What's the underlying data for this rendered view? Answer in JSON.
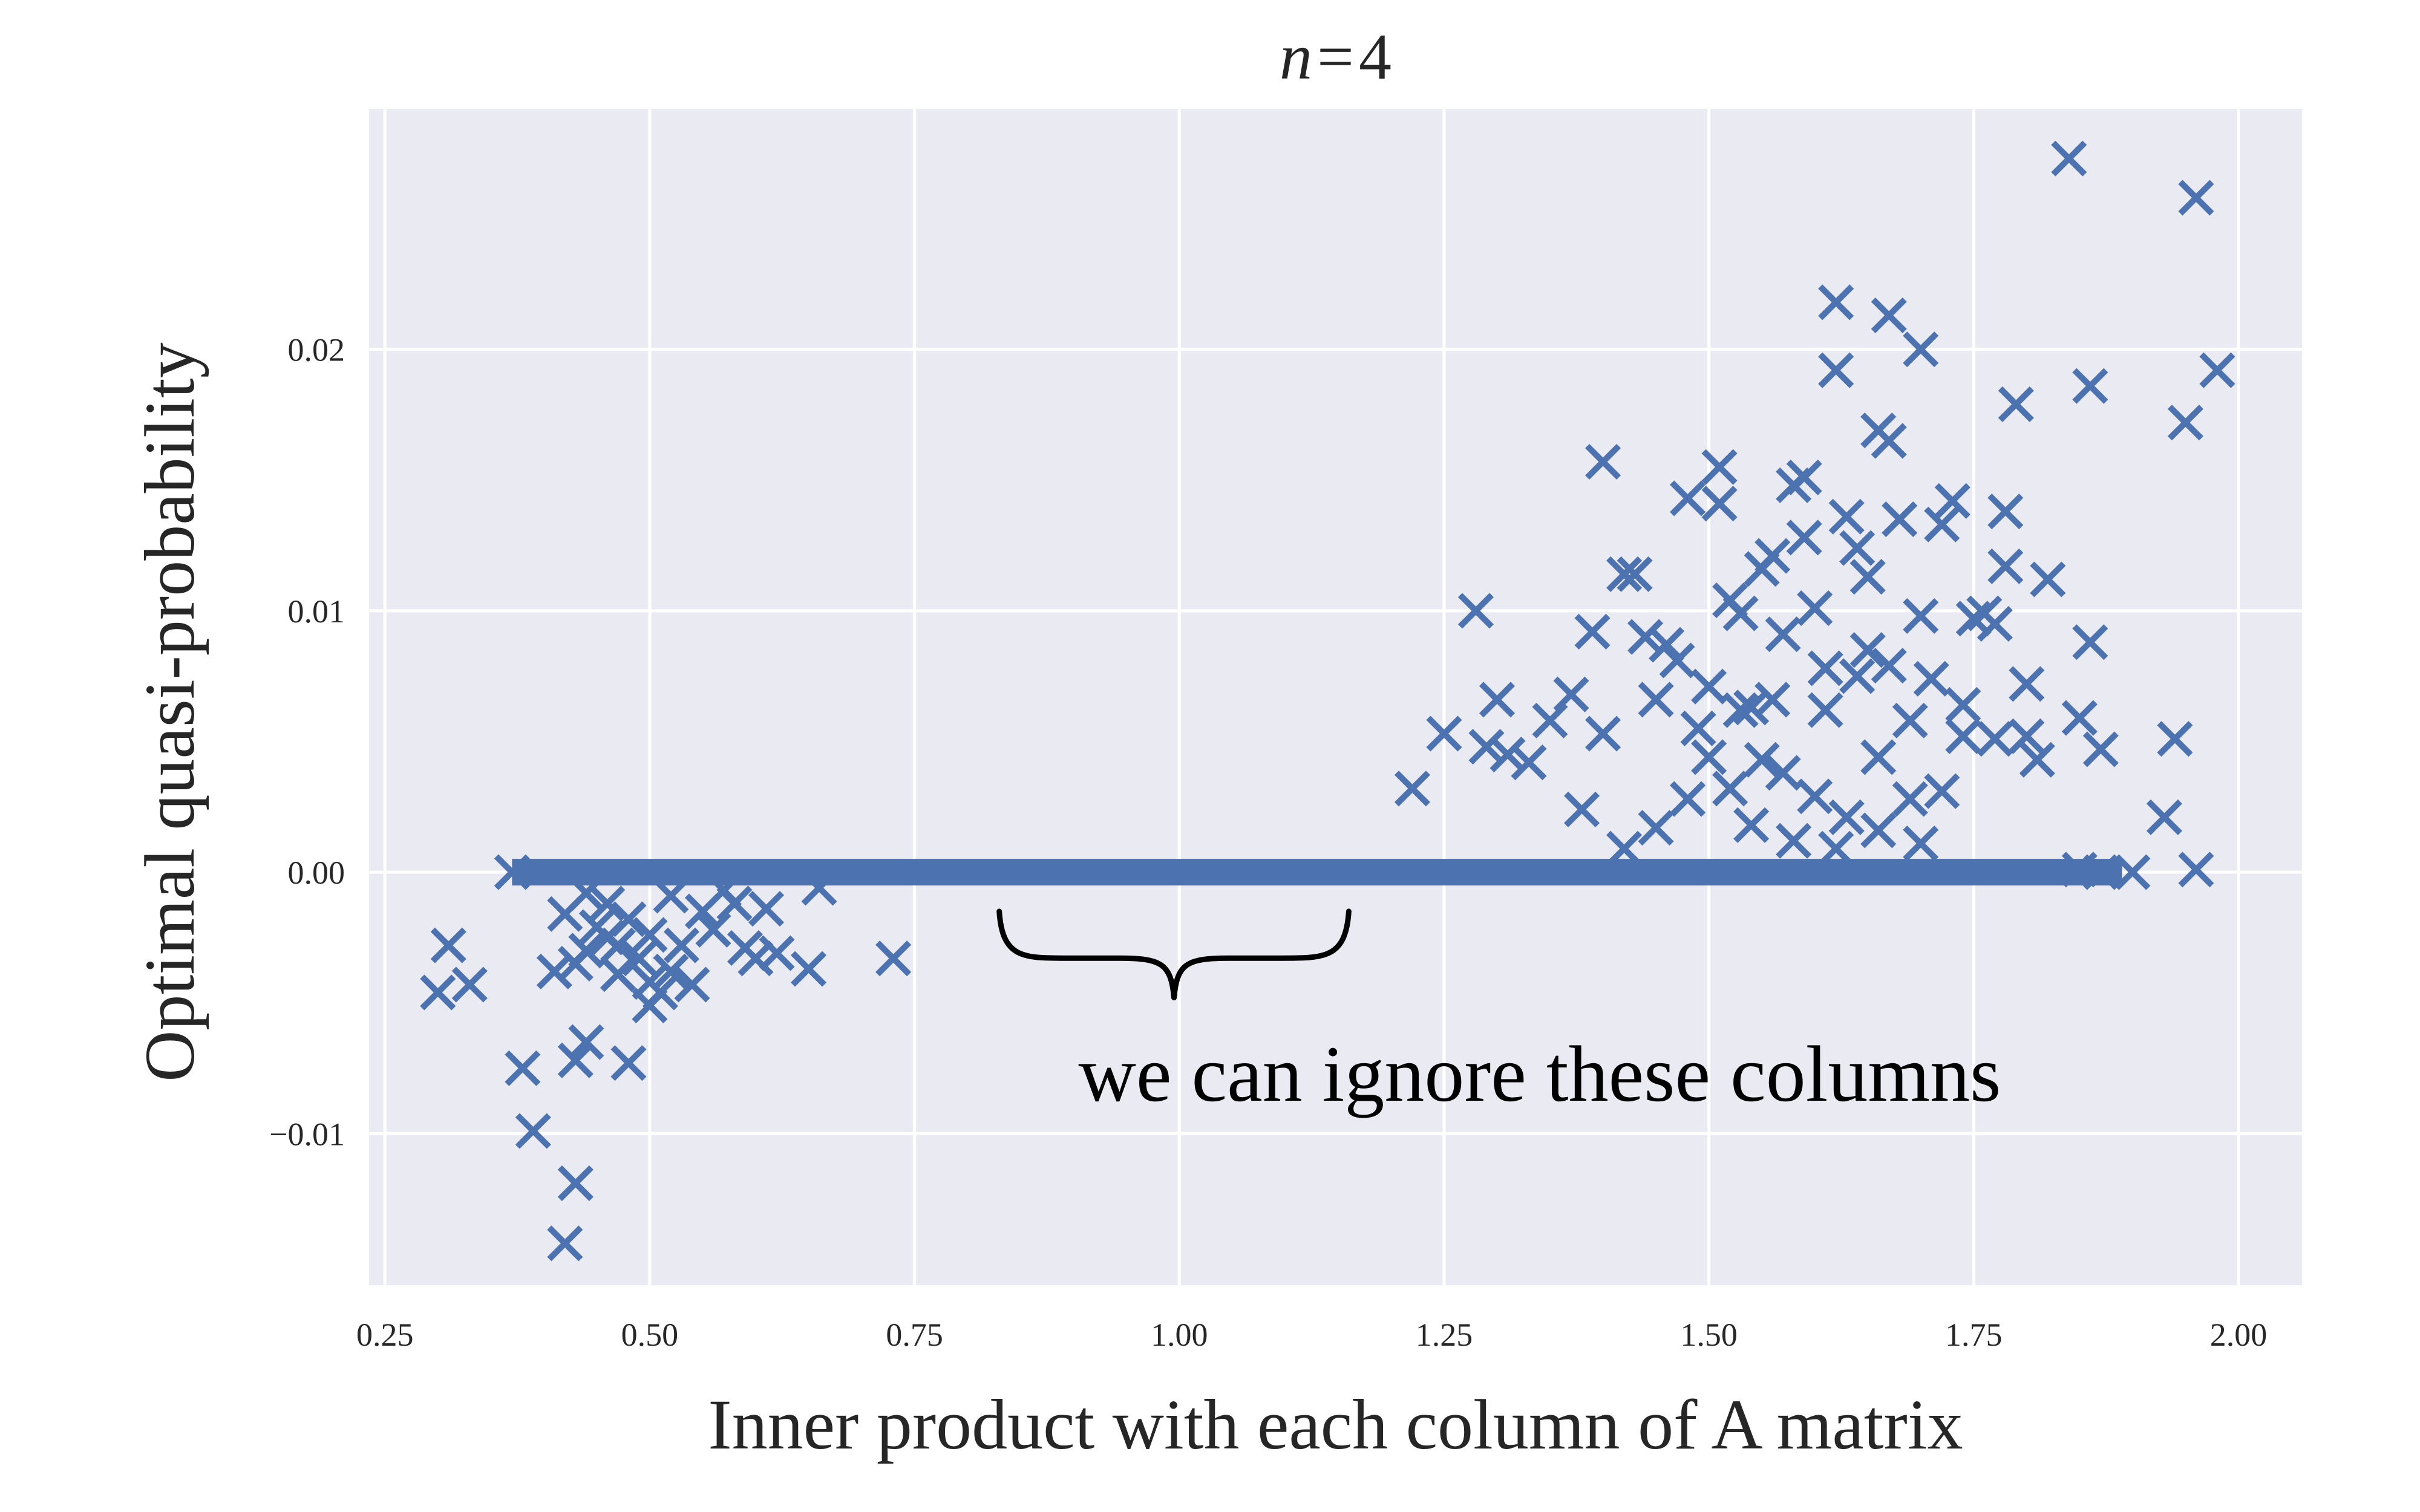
{
  "chart_data": {
    "type": "scatter",
    "title_var": "n",
    "title_op": "=",
    "title_num": "4",
    "xlabel": "Inner product with each column of A matrix",
    "ylabel": "Optimal quasi-probability",
    "xlim": [
      0.235,
      2.06
    ],
    "ylim": [
      -0.0158,
      0.0292
    ],
    "xticks": [
      0.25,
      0.5,
      0.75,
      1.0,
      1.25,
      1.5,
      1.75,
      2.0
    ],
    "xtick_labels": [
      "0.25",
      "0.50",
      "0.75",
      "1.00",
      "1.25",
      "1.50",
      "1.75",
      "2.00"
    ],
    "yticks": [
      -0.01,
      0.0,
      0.01,
      0.02
    ],
    "ytick_labels": [
      "−0.01",
      "0.00",
      "0.01",
      "0.02"
    ],
    "grid": true,
    "marker": "x",
    "colors": {
      "background": "#eaeaf2",
      "grid": "#ffffff",
      "marker": "#4c72b0",
      "brace": "#000000"
    },
    "annotation": {
      "text": "we can ignore these columns",
      "brace_x": [
        0.83,
        1.16
      ],
      "brace_y_top": -0.0015,
      "brace_y_tip": -0.0048
    },
    "series": [
      {
        "points": [
          [
            0.31,
            -0.0028
          ],
          [
            0.3,
            -0.0046
          ],
          [
            0.33,
            -0.0043
          ],
          [
            0.37,
            0.0
          ],
          [
            0.38,
            -0.0075
          ],
          [
            0.39,
            -0.0099
          ],
          [
            0.42,
            -0.0142
          ],
          [
            0.43,
            -0.0119
          ],
          [
            0.43,
            -0.0072
          ],
          [
            0.44,
            -0.0065
          ],
          [
            0.48,
            -0.0073
          ],
          [
            0.41,
            -0.0038
          ],
          [
            0.43,
            -0.0035
          ],
          [
            0.44,
            -0.003
          ],
          [
            0.45,
            -0.0021
          ],
          [
            0.46,
            -0.0025
          ],
          [
            0.47,
            -0.0039
          ],
          [
            0.48,
            -0.0018
          ],
          [
            0.49,
            -0.0033
          ],
          [
            0.5,
            -0.0042
          ],
          [
            0.5,
            -0.0051
          ],
          [
            0.51,
            -0.0046
          ],
          [
            0.52,
            -0.0038
          ],
          [
            0.53,
            -0.0028
          ],
          [
            0.54,
            -0.0043
          ],
          [
            0.55,
            -0.0015
          ],
          [
            0.56,
            -0.0022
          ],
          [
            0.58,
            -0.0012
          ],
          [
            0.59,
            -0.0029
          ],
          [
            0.6,
            -0.0033
          ],
          [
            0.62,
            -0.0031
          ],
          [
            0.65,
            -0.0037
          ],
          [
            0.66,
            -0.0006
          ],
          [
            0.73,
            -0.0033
          ],
          [
            0.46,
            -0.0012
          ],
          [
            0.44,
            -0.0008
          ],
          [
            0.52,
            -0.0009
          ],
          [
            0.57,
            -0.0007
          ],
          [
            0.61,
            -0.0014
          ],
          [
            0.42,
            -0.0016
          ],
          [
            0.47,
            -0.0028
          ],
          [
            0.5,
            -0.0024
          ],
          [
            1.22,
            0.0032
          ],
          [
            1.25,
            0.0053
          ],
          [
            1.28,
            0.01
          ],
          [
            1.29,
            0.0048
          ],
          [
            1.3,
            0.0066
          ],
          [
            1.31,
            0.0045
          ],
          [
            1.33,
            0.0042
          ],
          [
            1.35,
            0.0058
          ],
          [
            1.37,
            0.0068
          ],
          [
            1.38,
            0.0024
          ],
          [
            1.39,
            0.0092
          ],
          [
            1.4,
            0.0157
          ],
          [
            1.4,
            0.0053
          ],
          [
            1.42,
            0.0114
          ],
          [
            1.43,
            0.0114
          ],
          [
            1.44,
            0.009
          ],
          [
            1.45,
            0.0066
          ],
          [
            1.46,
            0.0087
          ],
          [
            1.47,
            0.0081
          ],
          [
            1.48,
            0.0143
          ],
          [
            1.49,
            0.0055
          ],
          [
            1.5,
            0.0071
          ],
          [
            1.51,
            0.0155
          ],
          [
            1.51,
            0.0141
          ],
          [
            1.52,
            0.0104
          ],
          [
            1.53,
            0.0099
          ],
          [
            1.54,
            0.0063
          ],
          [
            1.55,
            0.0116
          ],
          [
            1.56,
            0.0121
          ],
          [
            1.57,
            0.0091
          ],
          [
            1.58,
            0.0148
          ],
          [
            1.59,
            0.0151
          ],
          [
            1.59,
            0.0128
          ],
          [
            1.6,
            0.0101
          ],
          [
            1.61,
            0.0078
          ],
          [
            1.62,
            0.0218
          ],
          [
            1.62,
            0.0192
          ],
          [
            1.63,
            0.0136
          ],
          [
            1.64,
            0.0124
          ],
          [
            1.65,
            0.0113
          ],
          [
            1.65,
            0.0085
          ],
          [
            1.66,
            0.0169
          ],
          [
            1.67,
            0.0165
          ],
          [
            1.67,
            0.0213
          ],
          [
            1.68,
            0.0135
          ],
          [
            1.69,
            0.0058
          ],
          [
            1.7,
            0.02
          ],
          [
            1.7,
            0.0098
          ],
          [
            1.71,
            0.0074
          ],
          [
            1.72,
            0.0133
          ],
          [
            1.73,
            0.0142
          ],
          [
            1.74,
            0.0052
          ],
          [
            1.75,
            0.0097
          ],
          [
            1.76,
            0.0099
          ],
          [
            1.77,
            0.0095
          ],
          [
            1.78,
            0.0138
          ],
          [
            1.78,
            0.0117
          ],
          [
            1.79,
            0.0179
          ],
          [
            1.8,
            0.0052
          ],
          [
            1.81,
            0.0043
          ],
          [
            1.82,
            0.0112
          ],
          [
            1.84,
            0.0273
          ],
          [
            1.85,
            0.0059
          ],
          [
            1.86,
            0.0186
          ],
          [
            1.86,
            0.0088
          ],
          [
            1.87,
            0.0047
          ],
          [
            1.93,
            0.0021
          ],
          [
            1.94,
            0.0051
          ],
          [
            1.95,
            0.0172
          ],
          [
            1.96,
            0.0258
          ],
          [
            1.98,
            0.0192
          ],
          [
            1.96,
            0.0001
          ],
          [
            1.9,
            0.0
          ],
          [
            1.87,
            0.0
          ],
          [
            1.85,
            0.0001
          ],
          [
            1.52,
            0.0032
          ],
          [
            1.55,
            0.0043
          ],
          [
            1.57,
            0.0038
          ],
          [
            1.6,
            0.0029
          ],
          [
            1.63,
            0.0021
          ],
          [
            1.66,
            0.0044
          ],
          [
            1.69,
            0.0028
          ],
          [
            1.72,
            0.0031
          ],
          [
            1.54,
            0.0018
          ],
          [
            1.58,
            0.0012
          ],
          [
            1.62,
            0.0009
          ],
          [
            1.66,
            0.0016
          ],
          [
            1.7,
            0.0011
          ],
          [
            1.48,
            0.0028
          ],
          [
            1.45,
            0.0017
          ],
          [
            1.42,
            0.0009
          ],
          [
            1.5,
            0.0044
          ],
          [
            1.53,
            0.0062
          ],
          [
            1.56,
            0.0066
          ],
          [
            1.61,
            0.0062
          ],
          [
            1.64,
            0.0075
          ],
          [
            1.67,
            0.0079
          ],
          [
            1.74,
            0.0064
          ],
          [
            1.77,
            0.0051
          ],
          [
            1.8,
            0.0072
          ]
        ]
      }
    ]
  }
}
